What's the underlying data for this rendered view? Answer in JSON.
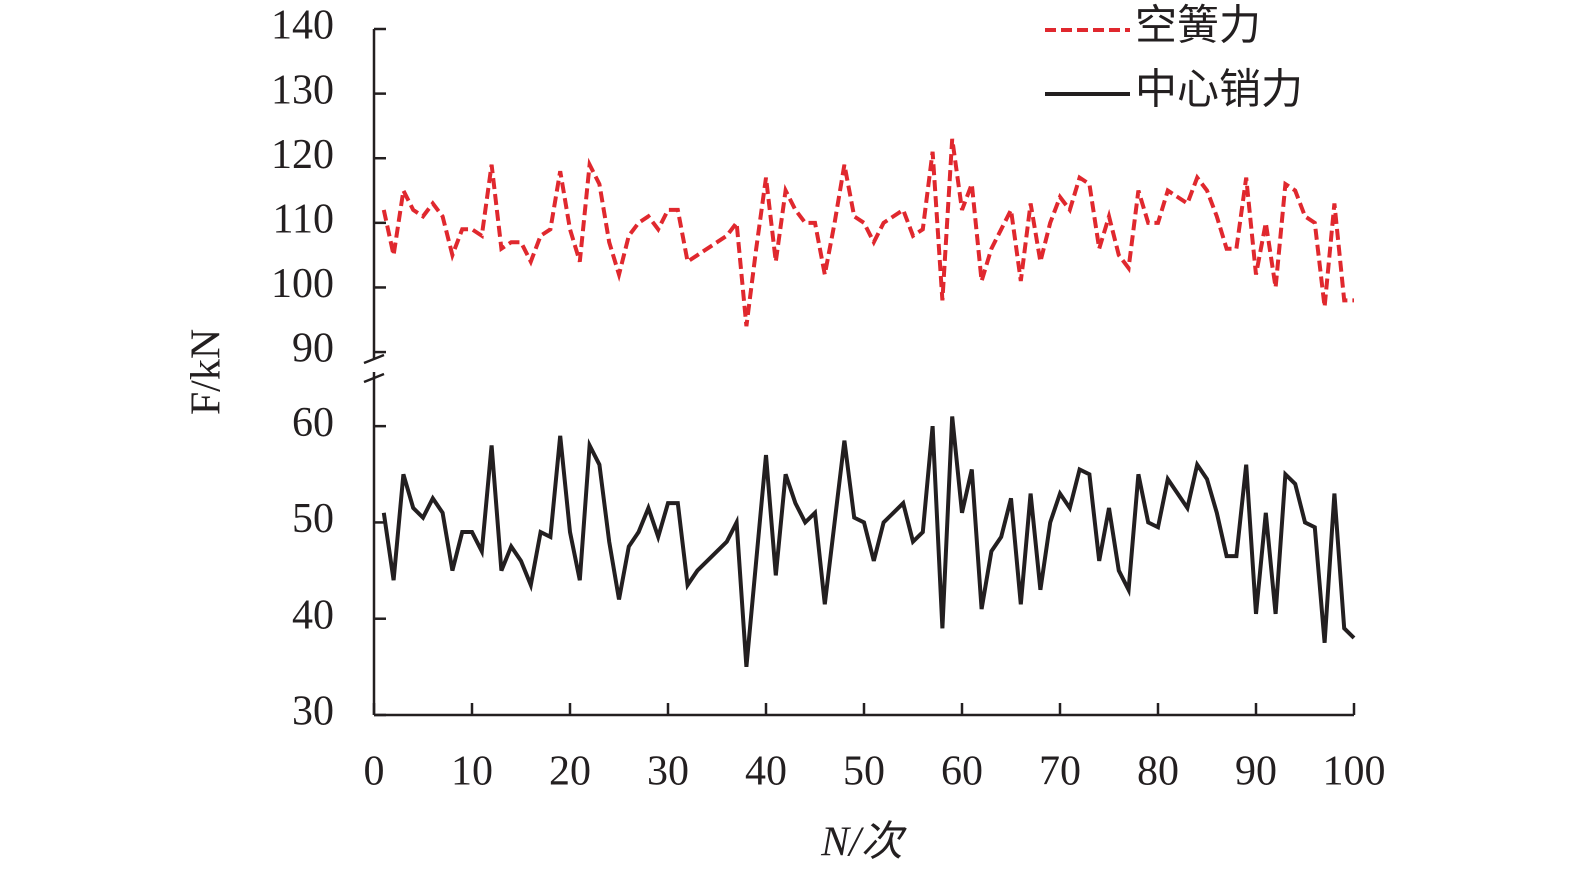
{
  "chart_data": {
    "type": "line",
    "xlabel": "N/次",
    "ylabel": "F/kN",
    "x": [
      1,
      2,
      3,
      4,
      5,
      6,
      7,
      8,
      9,
      10,
      11,
      12,
      13,
      14,
      15,
      16,
      17,
      18,
      19,
      20,
      21,
      22,
      23,
      24,
      25,
      26,
      27,
      28,
      29,
      30,
      31,
      32,
      33,
      34,
      35,
      36,
      37,
      38,
      39,
      40,
      41,
      42,
      43,
      44,
      45,
      46,
      47,
      48,
      49,
      50,
      51,
      52,
      53,
      54,
      55,
      56,
      57,
      58,
      59,
      60,
      61,
      62,
      63,
      64,
      65,
      66,
      67,
      68,
      69,
      70,
      71,
      72,
      73,
      74,
      75,
      76,
      77,
      78,
      79,
      80,
      81,
      82,
      83,
      84,
      85,
      86,
      87,
      88,
      89,
      90,
      91,
      92,
      93,
      94,
      95,
      96,
      97,
      98,
      99,
      100
    ],
    "xlim": [
      0,
      100
    ],
    "xticks": [
      0,
      10,
      20,
      30,
      40,
      50,
      60,
      70,
      80,
      90,
      100
    ],
    "ylim": [
      30,
      65
    ],
    "yticks": [
      30,
      40,
      50,
      60
    ],
    "y2lim": [
      88,
      140
    ],
    "y2ticks": [
      90,
      100,
      110,
      120,
      130,
      140
    ],
    "axis_break": true,
    "legend": "upper right",
    "series": [
      {
        "name": "空簧力",
        "color": "#e0282e",
        "dashed": true,
        "axis": "y2",
        "values": [
          112,
          105,
          115,
          112,
          111,
          113,
          111,
          105,
          109,
          109,
          108,
          119,
          106,
          107,
          107,
          104,
          108,
          109,
          118,
          109,
          104,
          119,
          116,
          107,
          102,
          108,
          110,
          111,
          109,
          112,
          112,
          104,
          105,
          106,
          107,
          108,
          110,
          94,
          106,
          117,
          104,
          115,
          112,
          110,
          110,
          102,
          110,
          119,
          111,
          110,
          107,
          110,
          111,
          112,
          108,
          109,
          121,
          98,
          123,
          112,
          116,
          101,
          106,
          109,
          112,
          101,
          113,
          104,
          110,
          114,
          112,
          117,
          116,
          106,
          111,
          105,
          103,
          115,
          110,
          110,
          115,
          114,
          113,
          117,
          115,
          111,
          106,
          106,
          117,
          102,
          110,
          100,
          116,
          115,
          111,
          110,
          97,
          113,
          98,
          98
        ]
      },
      {
        "name": "中心销力",
        "color": "#231f20",
        "dashed": false,
        "values": [
          51,
          44,
          55,
          51.5,
          50.5,
          52.5,
          51,
          45,
          49,
          49,
          47,
          58,
          45,
          47.5,
          46,
          43.5,
          49,
          48.5,
          59,
          49,
          44,
          58,
          56,
          48,
          42,
          47.5,
          49,
          51.5,
          48.5,
          52,
          52,
          43.5,
          45,
          46,
          47,
          48,
          50,
          35,
          46,
          57,
          44.5,
          55,
          52,
          50,
          51,
          41.5,
          50,
          58.5,
          50.5,
          50,
          46,
          50,
          51,
          52,
          48,
          49,
          60,
          39,
          61,
          51,
          55.5,
          41,
          47,
          48.5,
          52.5,
          41.5,
          53,
          43,
          50,
          53,
          51.5,
          55.5,
          55,
          46,
          51.5,
          45,
          43,
          55,
          50,
          49.5,
          54.5,
          53,
          51.5,
          56,
          54.5,
          51,
          46.5,
          46.5,
          56,
          40.5,
          51,
          40.5,
          55,
          54,
          50,
          49.5,
          37.5,
          53,
          39,
          38
        ]
      }
    ]
  }
}
